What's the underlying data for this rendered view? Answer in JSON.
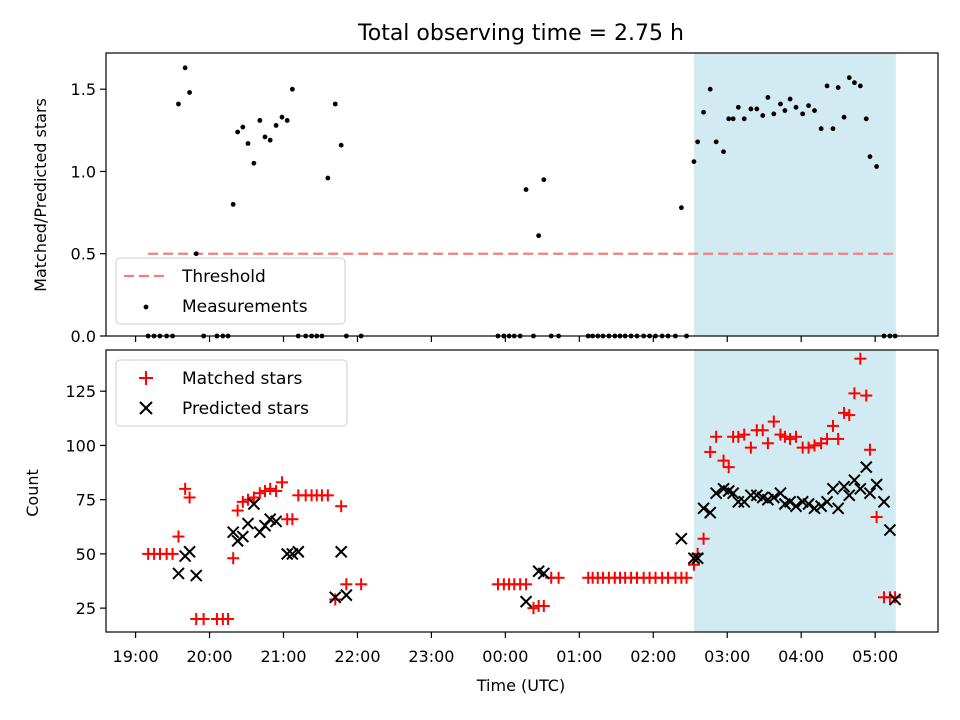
{
  "title": "Total observing time = 2.75 h",
  "colors": {
    "highlight": "#add8e6",
    "threshold": "#f08080",
    "measurement": "#000000",
    "matched": "#ff0000",
    "predicted": "#000000"
  },
  "chart_data": [
    {
      "type": "scatter",
      "panel": "top",
      "ylabel": "Matched/Predicted stars",
      "ylim": [
        0,
        1.72
      ],
      "yticks": [
        0.0,
        0.5,
        1.0,
        1.5
      ],
      "ytick_labels": [
        "0.0",
        "0.5",
        "1.0",
        "1.5"
      ],
      "legend": {
        "placement": "lower-left",
        "entries": [
          "Threshold",
          "Measurements"
        ]
      },
      "threshold": {
        "name": "Threshold",
        "value": 0.5,
        "x_start_h": 19.17,
        "x_end_h": 29.3
      },
      "highlight_span_h": [
        26.55,
        29.28
      ],
      "series": [
        {
          "name": "Measurements",
          "x_h": [
            19.17,
            19.25,
            19.33,
            19.42,
            19.5,
            19.58,
            19.67,
            19.73,
            19.82,
            19.92,
            20.1,
            20.18,
            20.25,
            20.32,
            20.38,
            20.45,
            20.52,
            20.6,
            20.68,
            20.75,
            20.82,
            20.9,
            20.98,
            21.05,
            21.12,
            21.2,
            21.3,
            21.38,
            21.45,
            21.52,
            21.6,
            21.7,
            21.78,
            21.85,
            22.05,
            23.9,
            23.98,
            24.05,
            24.12,
            24.2,
            24.28,
            24.38,
            24.45,
            24.52,
            24.62,
            24.72,
            25.12,
            25.18,
            25.25,
            25.32,
            25.4,
            25.48,
            25.55,
            25.62,
            25.7,
            25.78,
            25.87,
            25.95,
            26.03,
            26.12,
            26.2,
            26.3,
            26.38,
            26.45,
            26.55,
            26.6,
            26.68,
            26.77,
            26.85,
            26.95,
            27.02,
            27.08,
            27.15,
            27.23,
            27.32,
            27.4,
            27.48,
            27.55,
            27.63,
            27.72,
            27.78,
            27.85,
            27.93,
            28.02,
            28.1,
            28.18,
            28.27,
            28.35,
            28.43,
            28.5,
            28.58,
            28.65,
            28.72,
            28.8,
            28.88,
            28.93,
            29.02,
            29.12,
            29.2,
            29.27
          ],
          "y": [
            0,
            0,
            0,
            0,
            0,
            1.41,
            1.63,
            1.48,
            0.5,
            0,
            0,
            0,
            0,
            0.8,
            1.24,
            1.27,
            1.17,
            1.05,
            1.31,
            1.21,
            1.19,
            1.28,
            1.33,
            1.31,
            1.5,
            0,
            0,
            0,
            0,
            0,
            0.96,
            1.41,
            1.16,
            0,
            0,
            0,
            0,
            0,
            0,
            0,
            0.89,
            0,
            0.61,
            0.95,
            0,
            0,
            0,
            0,
            0,
            0,
            0,
            0,
            0,
            0,
            0,
            0,
            0,
            0,
            0,
            0,
            0,
            0,
            0.78,
            0,
            1.06,
            1.18,
            1.36,
            1.5,
            1.18,
            1.12,
            1.32,
            1.32,
            1.39,
            1.32,
            1.38,
            1.38,
            1.34,
            1.45,
            1.35,
            1.41,
            1.37,
            1.44,
            1.39,
            1.35,
            1.4,
            1.37,
            1.26,
            1.52,
            1.26,
            1.51,
            1.33,
            1.57,
            1.54,
            1.52,
            1.32,
            1.09,
            1.03,
            0,
            0,
            0
          ]
        }
      ]
    },
    {
      "type": "scatter",
      "panel": "bottom",
      "ylabel": "Count",
      "xlabel": "Time (UTC)",
      "ylim": [
        14,
        144
      ],
      "yticks": [
        25,
        50,
        75,
        100,
        125
      ],
      "ytick_labels": [
        "25",
        "50",
        "75",
        "100",
        "125"
      ],
      "xlim_h": [
        18.6,
        29.85
      ],
      "xticks_h": [
        19,
        20,
        21,
        22,
        23,
        24,
        25,
        26,
        27,
        28,
        29
      ],
      "xtick_labels": [
        "19:00",
        "20:00",
        "21:00",
        "22:00",
        "23:00",
        "00:00",
        "01:00",
        "02:00",
        "03:00",
        "04:00",
        "05:00"
      ],
      "legend": {
        "placement": "upper-left",
        "entries": [
          "Matched stars",
          "Predicted stars"
        ]
      },
      "highlight_span_h": [
        26.55,
        29.28
      ],
      "series": [
        {
          "name": "Matched stars",
          "marker": "+",
          "x_h": [
            19.17,
            19.25,
            19.33,
            19.42,
            19.5,
            19.58,
            19.67,
            19.73,
            19.82,
            19.92,
            20.1,
            20.18,
            20.25,
            20.32,
            20.38,
            20.45,
            20.52,
            20.6,
            20.68,
            20.75,
            20.82,
            20.9,
            20.98,
            21.05,
            21.12,
            21.2,
            21.3,
            21.38,
            21.45,
            21.52,
            21.6,
            21.7,
            21.78,
            21.85,
            22.05,
            23.9,
            23.98,
            24.05,
            24.12,
            24.2,
            24.28,
            24.38,
            24.45,
            24.52,
            24.62,
            24.72,
            25.12,
            25.18,
            25.25,
            25.32,
            25.4,
            25.48,
            25.55,
            25.62,
            25.7,
            25.78,
            25.87,
            25.95,
            26.03,
            26.12,
            26.2,
            26.3,
            26.38,
            26.45,
            26.55,
            26.6,
            26.68,
            26.77,
            26.85,
            26.95,
            27.02,
            27.08,
            27.15,
            27.23,
            27.32,
            27.4,
            27.48,
            27.55,
            27.63,
            27.72,
            27.78,
            27.85,
            27.93,
            28.02,
            28.1,
            28.18,
            28.27,
            28.35,
            28.43,
            28.5,
            28.58,
            28.65,
            28.72,
            28.8,
            28.88,
            28.93,
            29.02,
            29.12,
            29.2,
            29.27
          ],
          "y": [
            50,
            50,
            50,
            50,
            50,
            58,
            80,
            76,
            20,
            20,
            20,
            20,
            20,
            48,
            70,
            74,
            75,
            76,
            78,
            79,
            80,
            79,
            83,
            66,
            66,
            77,
            77,
            77,
            77,
            77,
            77,
            29,
            72,
            36,
            36,
            36,
            36,
            36,
            36,
            36,
            36,
            25,
            26,
            26,
            39,
            39,
            39,
            39,
            39,
            39,
            39,
            39,
            39,
            39,
            39,
            39,
            39,
            39,
            39,
            39,
            39,
            39,
            39,
            39,
            45,
            50,
            57,
            97,
            104,
            93,
            90,
            104,
            104,
            105,
            99,
            107,
            107,
            101,
            111,
            105,
            104,
            103,
            104,
            99,
            99,
            100,
            101,
            103,
            109,
            103,
            115,
            114,
            124,
            140,
            123,
            98,
            67,
            30,
            30,
            30
          ]
        },
        {
          "name": "Predicted stars",
          "marker": "x",
          "x_h": [
            19.58,
            19.67,
            19.73,
            19.82,
            20.32,
            20.38,
            20.45,
            20.52,
            20.6,
            20.68,
            20.75,
            20.82,
            20.9,
            21.05,
            21.12,
            21.2,
            21.7,
            21.78,
            21.85,
            24.28,
            24.45,
            24.52,
            26.38,
            26.55,
            26.6,
            26.68,
            26.77,
            26.85,
            26.95,
            27.02,
            27.08,
            27.15,
            27.23,
            27.32,
            27.4,
            27.48,
            27.55,
            27.63,
            27.72,
            27.78,
            27.85,
            27.93,
            28.02,
            28.1,
            28.18,
            28.27,
            28.35,
            28.43,
            28.5,
            28.58,
            28.65,
            28.72,
            28.8,
            28.88,
            28.93,
            29.02,
            29.12,
            29.2,
            29.27
          ],
          "y": [
            41,
            49,
            51,
            40,
            60,
            56,
            58,
            64,
            73,
            60,
            63,
            66,
            65,
            50,
            50,
            51,
            30,
            51,
            31,
            28,
            42,
            41,
            57,
            48,
            48,
            71,
            69,
            78,
            80,
            79,
            78,
            74,
            74,
            77,
            77,
            76,
            75,
            76,
            78,
            73,
            74,
            72,
            74,
            73,
            71,
            72,
            74,
            80,
            71,
            81,
            77,
            84,
            80,
            90,
            78,
            82,
            74,
            61,
            29
          ]
        }
      ]
    }
  ]
}
